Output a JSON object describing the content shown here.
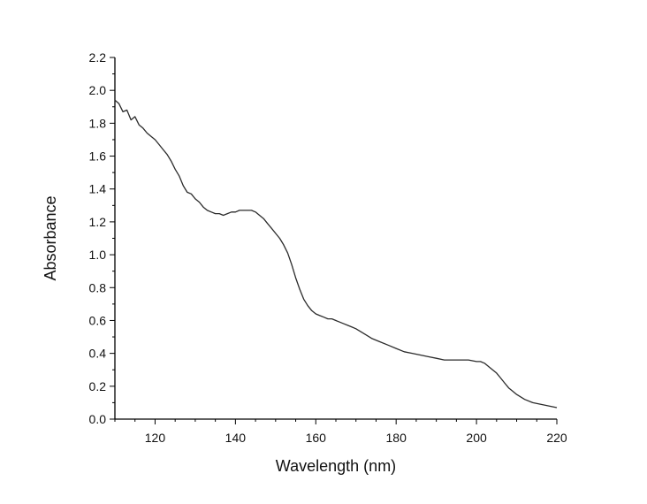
{
  "chart_data": {
    "type": "line",
    "title": "",
    "xlabel": "Wavelength (nm)",
    "ylabel": "Absorbance",
    "xlim": [
      110,
      220
    ],
    "ylim": [
      0.0,
      2.2
    ],
    "x_ticks": [
      120,
      140,
      160,
      180,
      200,
      220
    ],
    "x_tick_labels": [
      "120",
      "140",
      "160",
      "180",
      "200",
      "220"
    ],
    "y_ticks": [
      0.0,
      0.2,
      0.4,
      0.6,
      0.8,
      1.0,
      1.2,
      1.4,
      1.6,
      1.8,
      2.0,
      2.2
    ],
    "y_tick_labels": [
      "0.0",
      "0.2",
      "0.4",
      "0.6",
      "0.8",
      "1.0",
      "1.2",
      "1.4",
      "1.6",
      "1.8",
      "2.0",
      "2.2"
    ],
    "grid": false,
    "legend": false,
    "series": [
      {
        "color": "#2b2b2b",
        "x": [
          110,
          111,
          112,
          113,
          114,
          115,
          116,
          117,
          118,
          119,
          120,
          121,
          122,
          123,
          124,
          125,
          126,
          127,
          128,
          129,
          130,
          131,
          132,
          133,
          134,
          135,
          136,
          137,
          138,
          139,
          140,
          141,
          142,
          143,
          144,
          145,
          146,
          147,
          148,
          149,
          150,
          151,
          152,
          153,
          154,
          155,
          156,
          157,
          158,
          159,
          160,
          161,
          162,
          163,
          164,
          165,
          166,
          167,
          168,
          169,
          170,
          172,
          174,
          176,
          178,
          180,
          182,
          184,
          186,
          188,
          190,
          192,
          194,
          196,
          198,
          200,
          201,
          202,
          203,
          204,
          205,
          206,
          207,
          208,
          209,
          210,
          212,
          214,
          216,
          218,
          220
        ],
        "y": [
          1.94,
          1.92,
          1.87,
          1.88,
          1.82,
          1.84,
          1.79,
          1.77,
          1.74,
          1.72,
          1.7,
          1.67,
          1.64,
          1.61,
          1.57,
          1.52,
          1.48,
          1.42,
          1.38,
          1.37,
          1.34,
          1.32,
          1.29,
          1.27,
          1.26,
          1.25,
          1.25,
          1.24,
          1.25,
          1.26,
          1.26,
          1.27,
          1.27,
          1.27,
          1.27,
          1.26,
          1.24,
          1.22,
          1.19,
          1.16,
          1.13,
          1.1,
          1.06,
          1.01,
          0.94,
          0.86,
          0.79,
          0.73,
          0.69,
          0.66,
          0.64,
          0.63,
          0.62,
          0.61,
          0.61,
          0.6,
          0.59,
          0.58,
          0.57,
          0.56,
          0.55,
          0.52,
          0.49,
          0.47,
          0.45,
          0.43,
          0.41,
          0.4,
          0.39,
          0.38,
          0.37,
          0.36,
          0.36,
          0.36,
          0.36,
          0.35,
          0.35,
          0.34,
          0.32,
          0.3,
          0.28,
          0.25,
          0.22,
          0.19,
          0.17,
          0.15,
          0.12,
          0.1,
          0.09,
          0.08,
          0.07
        ]
      }
    ]
  }
}
